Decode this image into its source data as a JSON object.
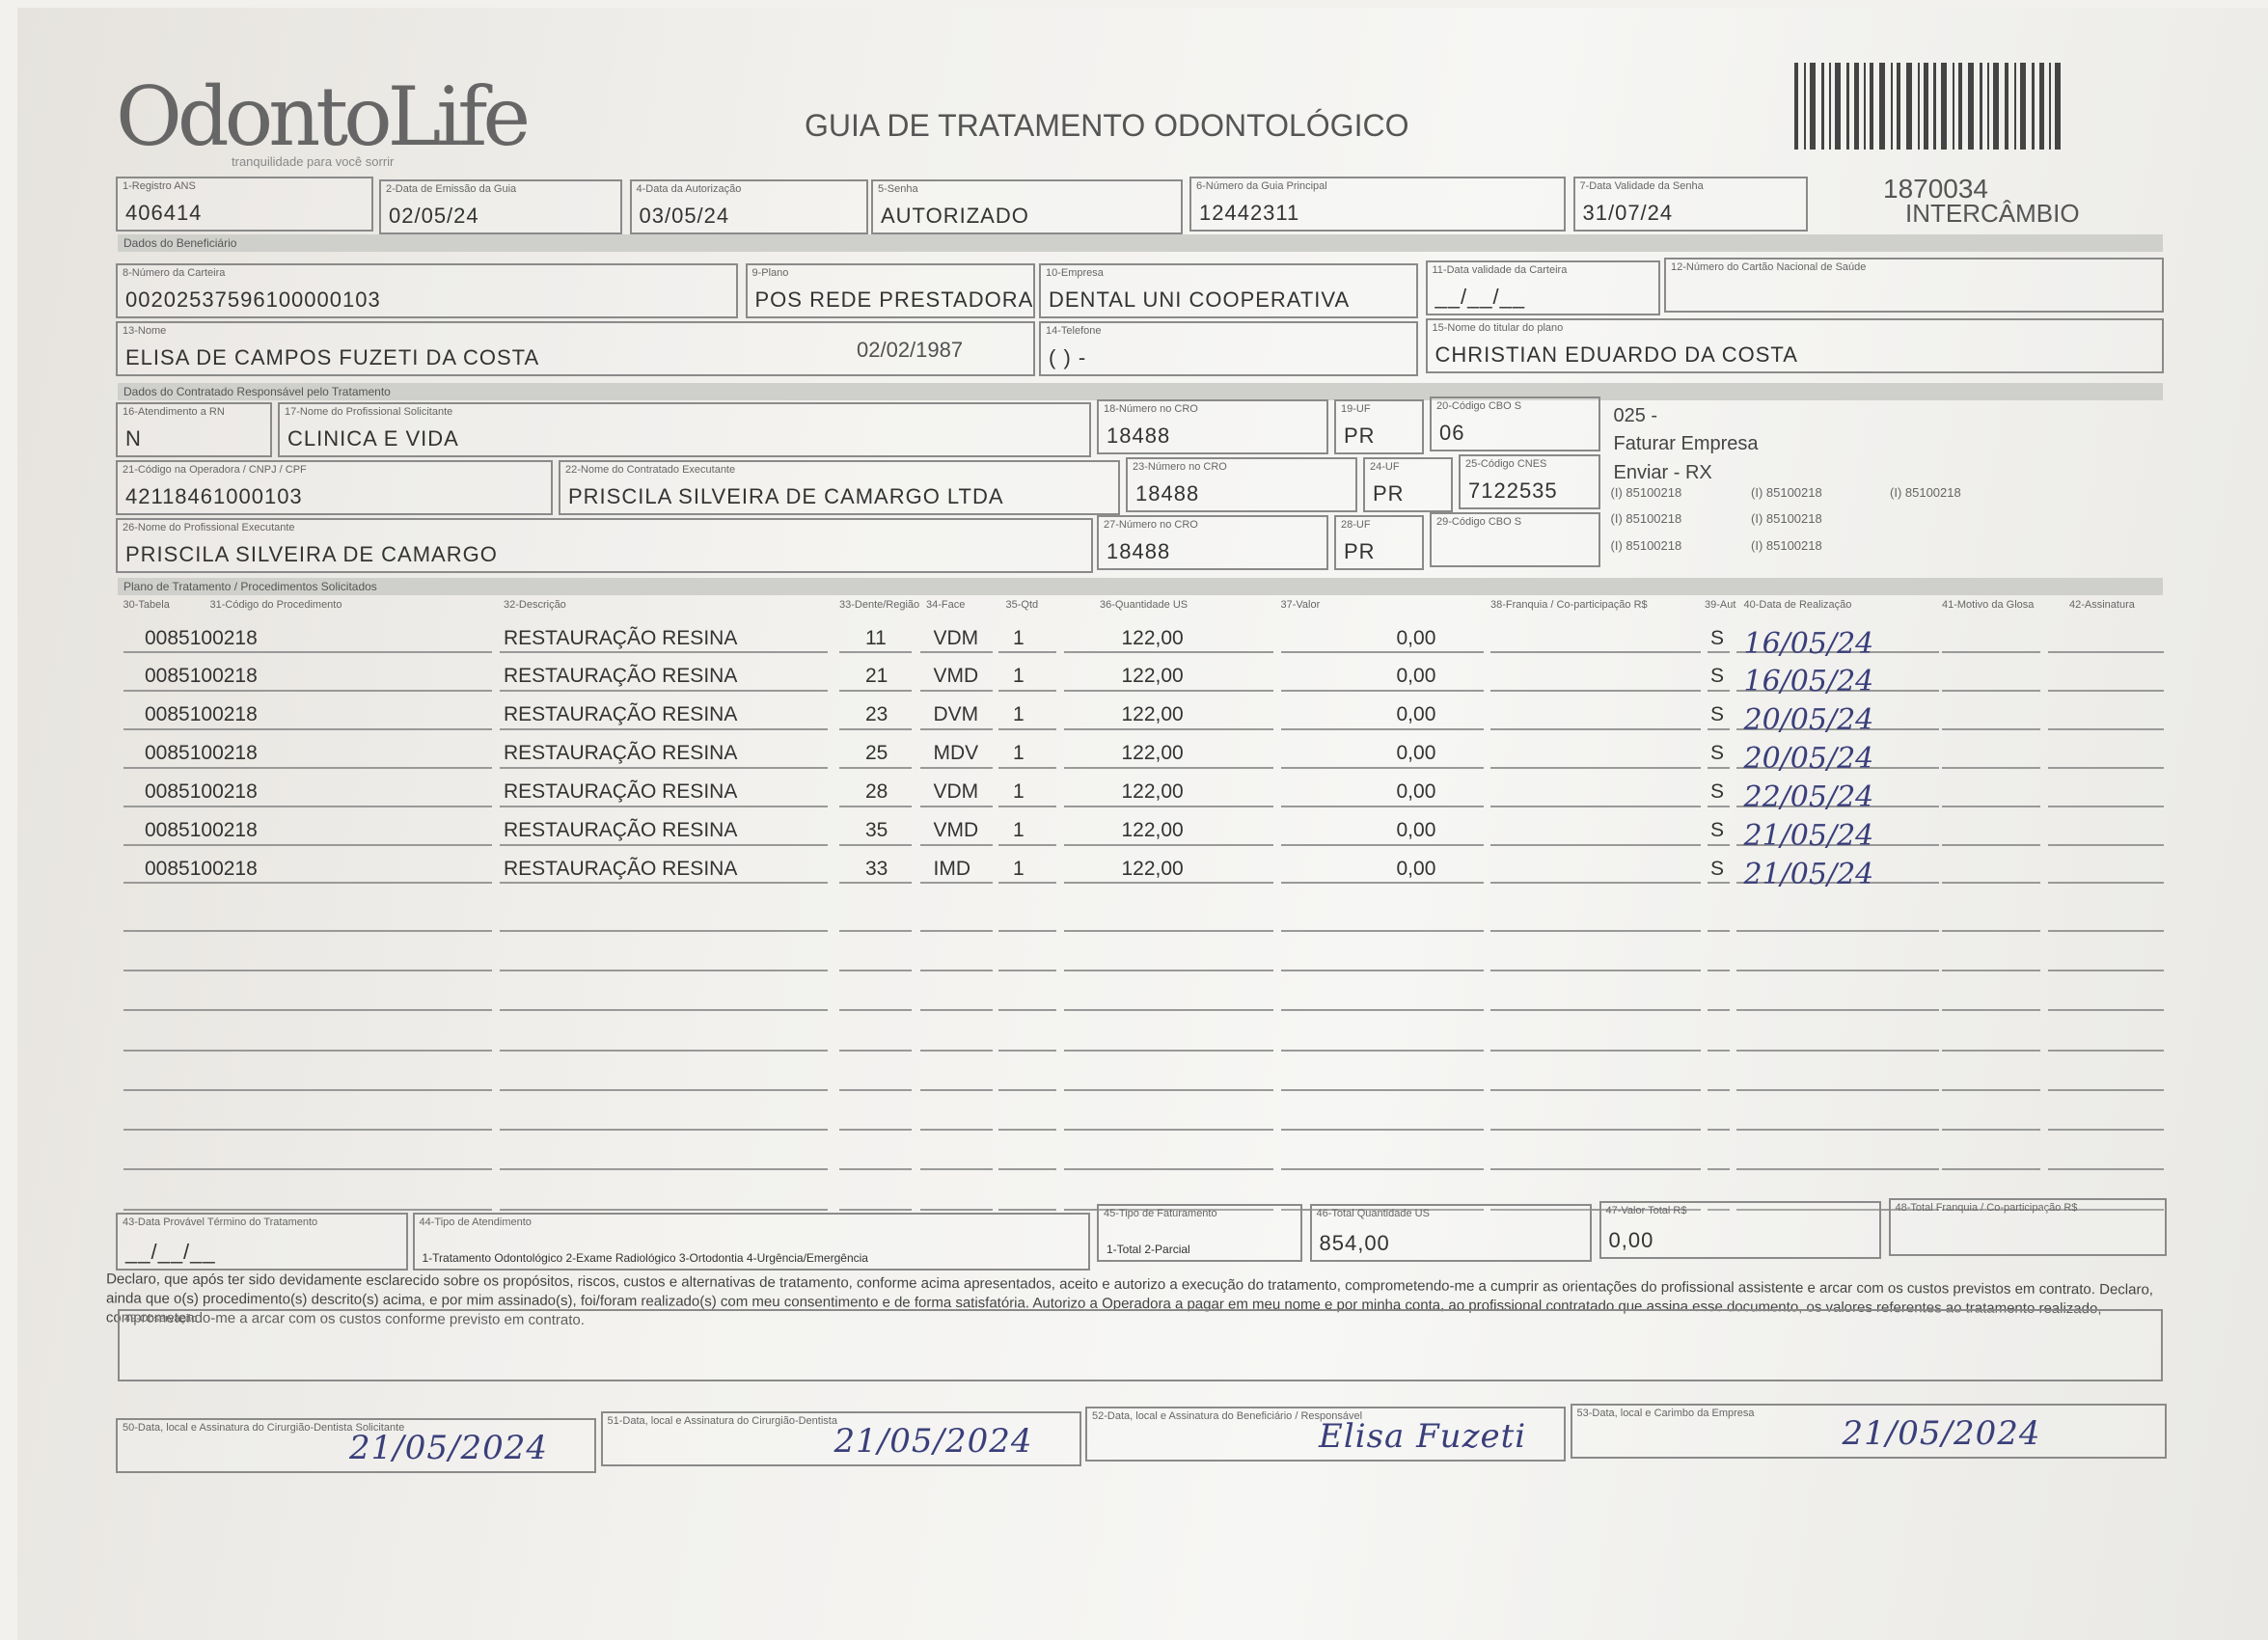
{
  "header": {
    "logo": "OdontoLife",
    "tagline": "tranquilidade para você sorrir",
    "title": "GUIA DE TRATAMENTO ODONTOLÓGICO",
    "code": "1870034",
    "code_note": "INTERCÂMBIO"
  },
  "sections": [
    "Dados do Beneficiário",
    "Dados do Contratado Responsável pelo Tratamento",
    "Plano de Tratamento / Procedimentos Solicitados"
  ],
  "fields": [
    {
      "label": "1-Registro ANS",
      "value": "406414"
    },
    {
      "label": "2-Data de Emissão da Guia",
      "value": "02/05/24"
    },
    {
      "label": "4-Data da Autorização",
      "value": "03/05/24"
    },
    {
      "label": "5-Senha",
      "value": "AUTORIZADO"
    },
    {
      "label": "6-Número da Guia Principal",
      "value": "12442311"
    },
    {
      "label": "7-Data Validade da Senha",
      "value": "31/07/24"
    },
    {
      "label": "8-Número da Carteira",
      "value": "00202537596100000103"
    },
    {
      "label": "9-Plano",
      "value": "POS REDE PRESTADORA"
    },
    {
      "label": "10-Empresa",
      "value": "DENTAL UNI  COOPERATIVA"
    },
    {
      "label": "11-Data validade da Carteira",
      "value": "__/__/__"
    },
    {
      "label": "12-Número do Cartão Nacional de Saúde",
      "value": ""
    },
    {
      "label": "13-Nome",
      "value": "ELISA DE CAMPOS FUZETI DA COSTA"
    },
    {
      "label": "14-Telefone",
      "value": "(   )         -"
    },
    {
      "label": "15-Nome do titular do plano",
      "value": "CHRISTIAN EDUARDO DA COSTA"
    },
    {
      "label": "16-Atendimento a RN",
      "value": "N"
    },
    {
      "label": "17-Nome do Profissional Solicitante",
      "value": "CLINICA E VIDA"
    },
    {
      "label": "18-Número no CRO",
      "value": "18488"
    },
    {
      "label": "19-UF",
      "value": "PR"
    },
    {
      "label": "20-Código CBO S",
      "value": "06"
    },
    {
      "label": "21-Código na Operadora / CNPJ / CPF",
      "value": "42118461000103"
    },
    {
      "label": "22-Nome do Contratado Executante",
      "value": "PRISCILA SILVEIRA DE CAMARGO LTDA"
    },
    {
      "label": "23-Número no CRO",
      "value": "18488"
    },
    {
      "label": "24-UF",
      "value": "PR"
    },
    {
      "label": "25-Código CNES",
      "value": "7122535"
    },
    {
      "label": "26-Nome do Profissional Executante",
      "value": "PRISCILA SILVEIRA DE CAMARGO"
    },
    {
      "label": "27-Número no CRO",
      "value": "18488"
    },
    {
      "label": "28-UF",
      "value": "PR"
    },
    {
      "label": "29-Código CBO S",
      "value": ""
    }
  ],
  "birth_date": "02/02/1987",
  "notes": [
    "025 -",
    "Faturar Empresa",
    "Enviar - RX"
  ],
  "codes": [
    "(I) 85100218",
    "(I) 85100218",
    "(I) 85100218",
    "(I) 85100218",
    "(I) 85100218",
    "(I) 85100218",
    "(I) 85100218"
  ],
  "table": {
    "columns": [
      "30-Tabela",
      "31-Código do Procedimento",
      "32-Descrição",
      "33-Dente/Região",
      "34-Face",
      "35-Qtd",
      "36-Quantidade US",
      "37-Valor",
      "38-Franquia / Co-participação R$",
      "39-Aut",
      "40-Data de Realização",
      "41-Motivo da Glosa",
      "42-Assinatura"
    ],
    "rows": [
      [
        "0085100218",
        "RESTAURAÇÃO RESINA",
        "11",
        "VDM",
        "1",
        "122,00",
        "0,00",
        "S",
        "16/05/24"
      ],
      [
        "0085100218",
        "RESTAURAÇÃO RESINA",
        "21",
        "VMD",
        "1",
        "122,00",
        "0,00",
        "S",
        "16/05/24"
      ],
      [
        "0085100218",
        "RESTAURAÇÃO RESINA",
        "23",
        "DVM",
        "1",
        "122,00",
        "0,00",
        "S",
        "20/05/24"
      ],
      [
        "0085100218",
        "RESTAURAÇÃO RESINA",
        "25",
        "MDV",
        "1",
        "122,00",
        "0,00",
        "S",
        "20/05/24"
      ],
      [
        "0085100218",
        "RESTAURAÇÃO RESINA",
        "28",
        "VDM",
        "1",
        "122,00",
        "0,00",
        "S",
        "22/05/24"
      ],
      [
        "0085100218",
        "RESTAURAÇÃO RESINA",
        "35",
        "VMD",
        "1",
        "122,00",
        "0,00",
        "S",
        "21/05/24"
      ],
      [
        "0085100218",
        "RESTAURAÇÃO RESINA",
        "33",
        "IMD",
        "1",
        "122,00",
        "0,00",
        "S",
        "21/05/24"
      ]
    ]
  },
  "totals": [
    {
      "label": "43-Data Provável Término do Tratamento",
      "value": "__/__/__"
    },
    {
      "label": "44-Tipo de Atendimento",
      "value": "1-Tratamento Odontológico  2-Exame Radiológico  3-Ortodontia  4-Urgência/Emergência"
    },
    {
      "label": "45-Tipo de Faturamento",
      "value": "1-Total  2-Parcial"
    },
    {
      "label": "46-Total Quantidade US",
      "value": "854,00"
    },
    {
      "label": "47-Valor Total R$",
      "value": "0,00"
    },
    {
      "label": "48-Total Franquia / Co-participação R$",
      "value": ""
    }
  ],
  "declaration": "Declaro, que após ter sido devidamente esclarecido sobre os propósitos, riscos, custos e alternativas de tratamento, conforme acima apresentados, aceito e autorizo a execução do tratamento, comprometendo-me a cumprir as orientações do profissional assistente e arcar com os custos previstos em contrato. Declaro, ainda que o(s) procedimento(s) descrito(s) acima, e por mim assinado(s), foi/foram realizado(s) com meu consentimento e de forma satisfatória. Autorizo a Operadora a pagar em meu nome e por minha conta, ao profissional contratado que assina esse documento, os valores referentes ao tratamento realizado, comprometendo-me a arcar com os custos conforme previsto em contrato.",
  "observation_label": "49-Observação",
  "signatures": [
    {
      "label": "50-Data, local e Assinatura do Cirurgião-Dentista Solicitante",
      "value": "21/05/2024"
    },
    {
      "label": "51-Data, local e Assinatura do Cirurgião-Dentista",
      "value": "21/05/2024"
    },
    {
      "label": "52-Data, local e Assinatura do Beneficiário / Responsável",
      "value": "Elisa Fuzeti"
    },
    {
      "label": "53-Data, local e Carimbo da Empresa",
      "value": "21/05/2024"
    }
  ]
}
